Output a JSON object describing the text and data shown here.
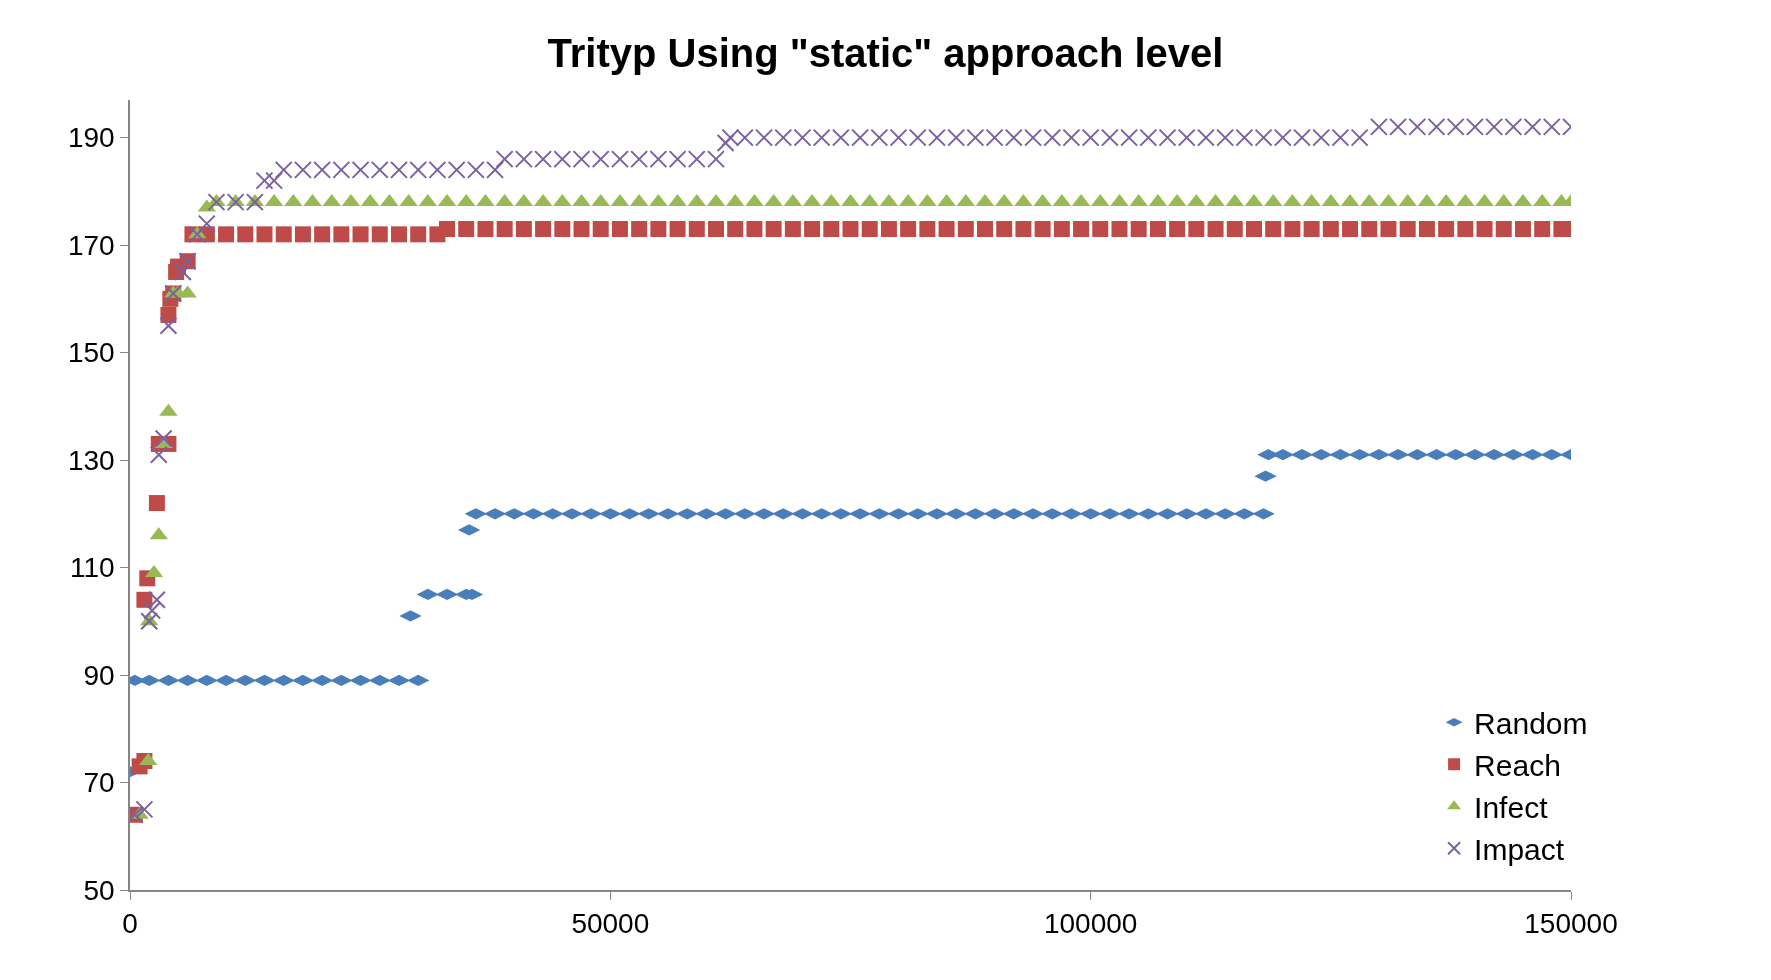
{
  "chart_data": {
    "type": "scatter",
    "title": "Trityp Using \"static\" approach level",
    "xlim": [
      0,
      150000
    ],
    "xticks": [
      0,
      50000,
      100000,
      150000
    ],
    "ylim": [
      50,
      197
    ],
    "yticks": [
      50,
      70,
      90,
      110,
      130,
      150,
      170,
      190
    ],
    "legend": "right",
    "series": [
      {
        "name": "Random",
        "color": "#4a7ebb",
        "marker": "diamond",
        "x": [
          0,
          500,
          2000,
          4000,
          6000,
          8000,
          10000,
          12000,
          14000,
          16000,
          18000,
          20000,
          22000,
          24000,
          26000,
          28000,
          29200,
          30000,
          31000,
          33000,
          35000,
          35300,
          35600,
          36000,
          38000,
          40000,
          42000,
          44000,
          46000,
          48000,
          50000,
          52000,
          54000,
          56000,
          58000,
          60000,
          62000,
          64000,
          66000,
          68000,
          70000,
          72000,
          74000,
          76000,
          78000,
          80000,
          82000,
          84000,
          86000,
          88000,
          90000,
          92000,
          94000,
          96000,
          98000,
          100000,
          102000,
          104000,
          106000,
          108000,
          110000,
          112000,
          114000,
          116000,
          118000,
          118200,
          118500,
          120000,
          122000,
          124000,
          126000,
          128000,
          130000,
          132000,
          134000,
          136000,
          138000,
          140000,
          142000,
          144000,
          146000,
          148000,
          150000
        ],
        "values": [
          72,
          89,
          89,
          89,
          89,
          89,
          89,
          89,
          89,
          89,
          89,
          89,
          89,
          89,
          89,
          89,
          101,
          89,
          105,
          105,
          105,
          117,
          105,
          120,
          120,
          120,
          120,
          120,
          120,
          120,
          120,
          120,
          120,
          120,
          120,
          120,
          120,
          120,
          120,
          120,
          120,
          120,
          120,
          120,
          120,
          120,
          120,
          120,
          120,
          120,
          120,
          120,
          120,
          120,
          120,
          120,
          120,
          120,
          120,
          120,
          120,
          120,
          120,
          120,
          120,
          127,
          131,
          131,
          131,
          131,
          131,
          131,
          131,
          131,
          131,
          131,
          131,
          131,
          131,
          131,
          131,
          131,
          131
        ]
      },
      {
        "name": "Reach",
        "color": "#be4b48",
        "marker": "square",
        "x": [
          500,
          1000,
          1500,
          1500,
          1800,
          2800,
          3000,
          4000,
          4000,
          4200,
          4500,
          4800,
          5000,
          6000,
          6500,
          8000,
          10000,
          12000,
          14000,
          16000,
          18000,
          20000,
          22000,
          24000,
          26000,
          28000,
          30000,
          32000,
          33000,
          35000,
          37000,
          39000,
          41000,
          43000,
          45000,
          47000,
          49000,
          51000,
          53000,
          55000,
          57000,
          59000,
          61000,
          63000,
          65000,
          67000,
          69000,
          71000,
          73000,
          75000,
          77000,
          79000,
          81000,
          83000,
          85000,
          87000,
          89000,
          91000,
          93000,
          95000,
          97000,
          99000,
          101000,
          103000,
          105000,
          107000,
          109000,
          111000,
          113000,
          115000,
          117000,
          119000,
          121000,
          123000,
          125000,
          127000,
          129000,
          131000,
          133000,
          135000,
          137000,
          139000,
          141000,
          143000,
          145000,
          147000,
          149000,
          150000
        ],
        "values": [
          64,
          73,
          74,
          104,
          108,
          122,
          133,
          133,
          157,
          160,
          161,
          165,
          166,
          167,
          172,
          172,
          172,
          172,
          172,
          172,
          172,
          172,
          172,
          172,
          172,
          172,
          172,
          172,
          173,
          173,
          173,
          173,
          173,
          173,
          173,
          173,
          173,
          173,
          173,
          173,
          173,
          173,
          173,
          173,
          173,
          173,
          173,
          173,
          173,
          173,
          173,
          173,
          173,
          173,
          173,
          173,
          173,
          173,
          173,
          173,
          173,
          173,
          173,
          173,
          173,
          173,
          173,
          173,
          173,
          173,
          173,
          173,
          173,
          173,
          173,
          173,
          173,
          173,
          173,
          173,
          173,
          173,
          173,
          173,
          173,
          173,
          173,
          173
        ]
      },
      {
        "name": "Infect",
        "color": "#98b954",
        "marker": "triangle",
        "x": [
          1000,
          1900,
          2000,
          2500,
          3000,
          3500,
          4000,
          4500,
          5000,
          6000,
          7000,
          8000,
          9000,
          11000,
          13000,
          15000,
          17000,
          19000,
          21000,
          23000,
          25000,
          27000,
          29000,
          31000,
          33000,
          35000,
          37000,
          39000,
          41000,
          43000,
          45000,
          47000,
          49000,
          51000,
          53000,
          55000,
          57000,
          59000,
          61000,
          63000,
          65000,
          67000,
          69000,
          71000,
          73000,
          75000,
          77000,
          79000,
          81000,
          83000,
          85000,
          87000,
          89000,
          91000,
          93000,
          95000,
          97000,
          99000,
          101000,
          103000,
          105000,
          107000,
          109000,
          111000,
          113000,
          115000,
          117000,
          119000,
          121000,
          123000,
          125000,
          127000,
          129000,
          131000,
          133000,
          135000,
          137000,
          139000,
          141000,
          143000,
          145000,
          147000,
          149000,
          150000
        ],
        "values": [
          64,
          74,
          100,
          109,
          116,
          133,
          139,
          161,
          161,
          161,
          172,
          177,
          178,
          178,
          178,
          178,
          178,
          178,
          178,
          178,
          178,
          178,
          178,
          178,
          178,
          178,
          178,
          178,
          178,
          178,
          178,
          178,
          178,
          178,
          178,
          178,
          178,
          178,
          178,
          178,
          178,
          178,
          178,
          178,
          178,
          178,
          178,
          178,
          178,
          178,
          178,
          178,
          178,
          178,
          178,
          178,
          178,
          178,
          178,
          178,
          178,
          178,
          178,
          178,
          178,
          178,
          178,
          178,
          178,
          178,
          178,
          178,
          178,
          178,
          178,
          178,
          178,
          178,
          178,
          178,
          178,
          178,
          178,
          178
        ]
      },
      {
        "name": "Impact",
        "color": "#7d60a0",
        "marker": "cross",
        "x": [
          500,
          1500,
          2000,
          2300,
          2800,
          3000,
          3500,
          4000,
          4500,
          5500,
          6000,
          7000,
          8000,
          9000,
          11000,
          13000,
          14000,
          15000,
          16000,
          18000,
          20000,
          22000,
          24000,
          26000,
          28000,
          30000,
          32000,
          34000,
          36000,
          38000,
          39000,
          41000,
          43000,
          45000,
          47000,
          49000,
          51000,
          53000,
          55000,
          57000,
          59000,
          61000,
          62000,
          62500,
          64000,
          66000,
          68000,
          70000,
          72000,
          74000,
          76000,
          78000,
          80000,
          82000,
          84000,
          86000,
          88000,
          90000,
          92000,
          94000,
          96000,
          98000,
          100000,
          102000,
          104000,
          106000,
          108000,
          110000,
          112000,
          114000,
          116000,
          118000,
          120000,
          122000,
          124000,
          126000,
          128000,
          130000,
          132000,
          134000,
          136000,
          138000,
          140000,
          142000,
          144000,
          146000,
          148000,
          150000
        ],
        "values": [
          64,
          65,
          100,
          102,
          104,
          131,
          134,
          155,
          161,
          165,
          167,
          172,
          174,
          178,
          178,
          178,
          182,
          182,
          184,
          184,
          184,
          184,
          184,
          184,
          184,
          184,
          184,
          184,
          184,
          184,
          186,
          186,
          186,
          186,
          186,
          186,
          186,
          186,
          186,
          186,
          186,
          186,
          189,
          190,
          190,
          190,
          190,
          190,
          190,
          190,
          190,
          190,
          190,
          190,
          190,
          190,
          190,
          190,
          190,
          190,
          190,
          190,
          190,
          190,
          190,
          190,
          190,
          190,
          190,
          190,
          190,
          190,
          190,
          190,
          190,
          190,
          190,
          192,
          192,
          192,
          192,
          192,
          192,
          192,
          192,
          192,
          192,
          192
        ]
      }
    ]
  }
}
